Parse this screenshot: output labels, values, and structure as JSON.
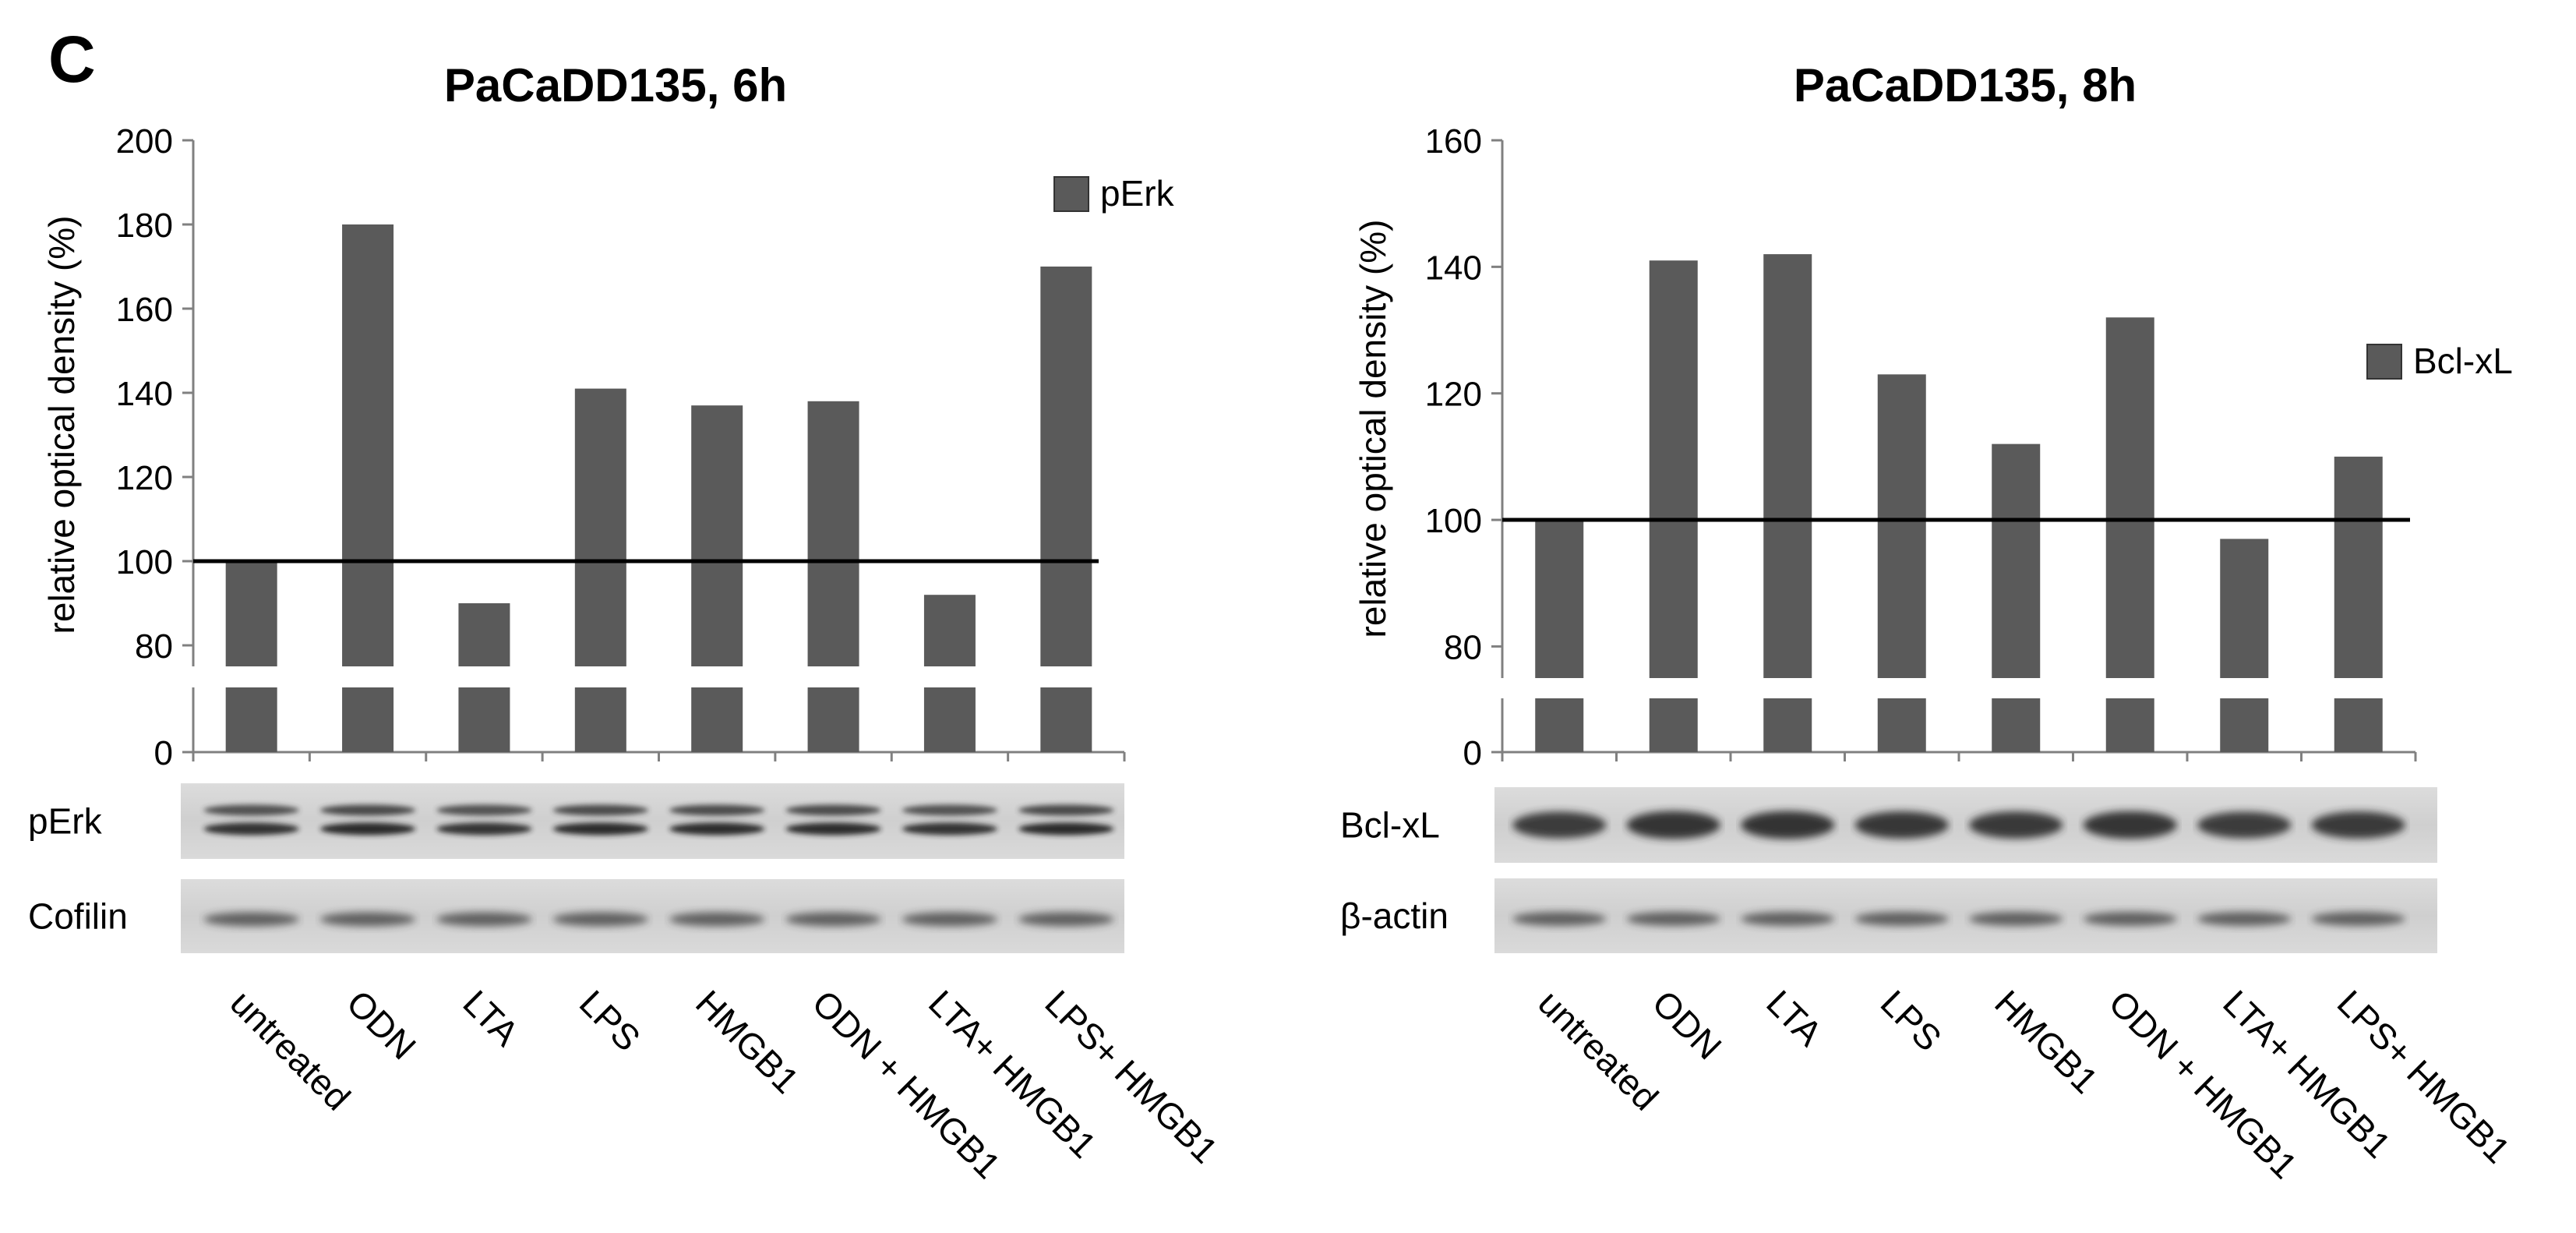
{
  "panel_label": "C",
  "colors": {
    "bar": "#5a5a5a",
    "axis": "#808080",
    "text": "#000000"
  },
  "chart_data": [
    {
      "type": "bar",
      "title": "PaCaDD135, 6h",
      "ylabel": "relative  optical density  (%)",
      "xlabel": "",
      "legend": "pErk",
      "legend_position": "top-right",
      "yticks": [
        0,
        80,
        100,
        120,
        140,
        160,
        180,
        200
      ],
      "axis_break": [
        0,
        75
      ],
      "ylim": [
        0,
        200
      ],
      "reference_line": 100,
      "categories": [
        "untreated",
        "ODN",
        "LTA",
        "LPS",
        "HMGB1",
        "ODN + HMGB1",
        "LTA+ HMGB1",
        "LPS+ HMGB1"
      ],
      "values": [
        100,
        180,
        90,
        141,
        137,
        138,
        92,
        170
      ],
      "blots": [
        {
          "label": "pErk",
          "style": "double"
        },
        {
          "label": "Cofilin",
          "style": "single"
        }
      ]
    },
    {
      "type": "bar",
      "title": "PaCaDD135, 8h",
      "ylabel": "relative  optical density  (%)",
      "xlabel": "",
      "legend": "Bcl-xL",
      "legend_position": "right",
      "yticks": [
        0,
        80,
        100,
        120,
        140,
        160
      ],
      "axis_break": [
        0,
        75
      ],
      "ylim": [
        0,
        160
      ],
      "reference_line": 100,
      "categories": [
        "untreated",
        "ODN",
        "LTA",
        "LPS",
        "HMGB1",
        "ODN + HMGB1",
        "LTA+ HMGB1",
        "LPS+ HMGB1"
      ],
      "values": [
        100,
        141,
        142,
        123,
        112,
        132,
        97,
        110
      ],
      "blots": [
        {
          "label": "Bcl-xL",
          "style": "thick"
        },
        {
          "label": "β-actin",
          "style": "single"
        }
      ]
    }
  ]
}
